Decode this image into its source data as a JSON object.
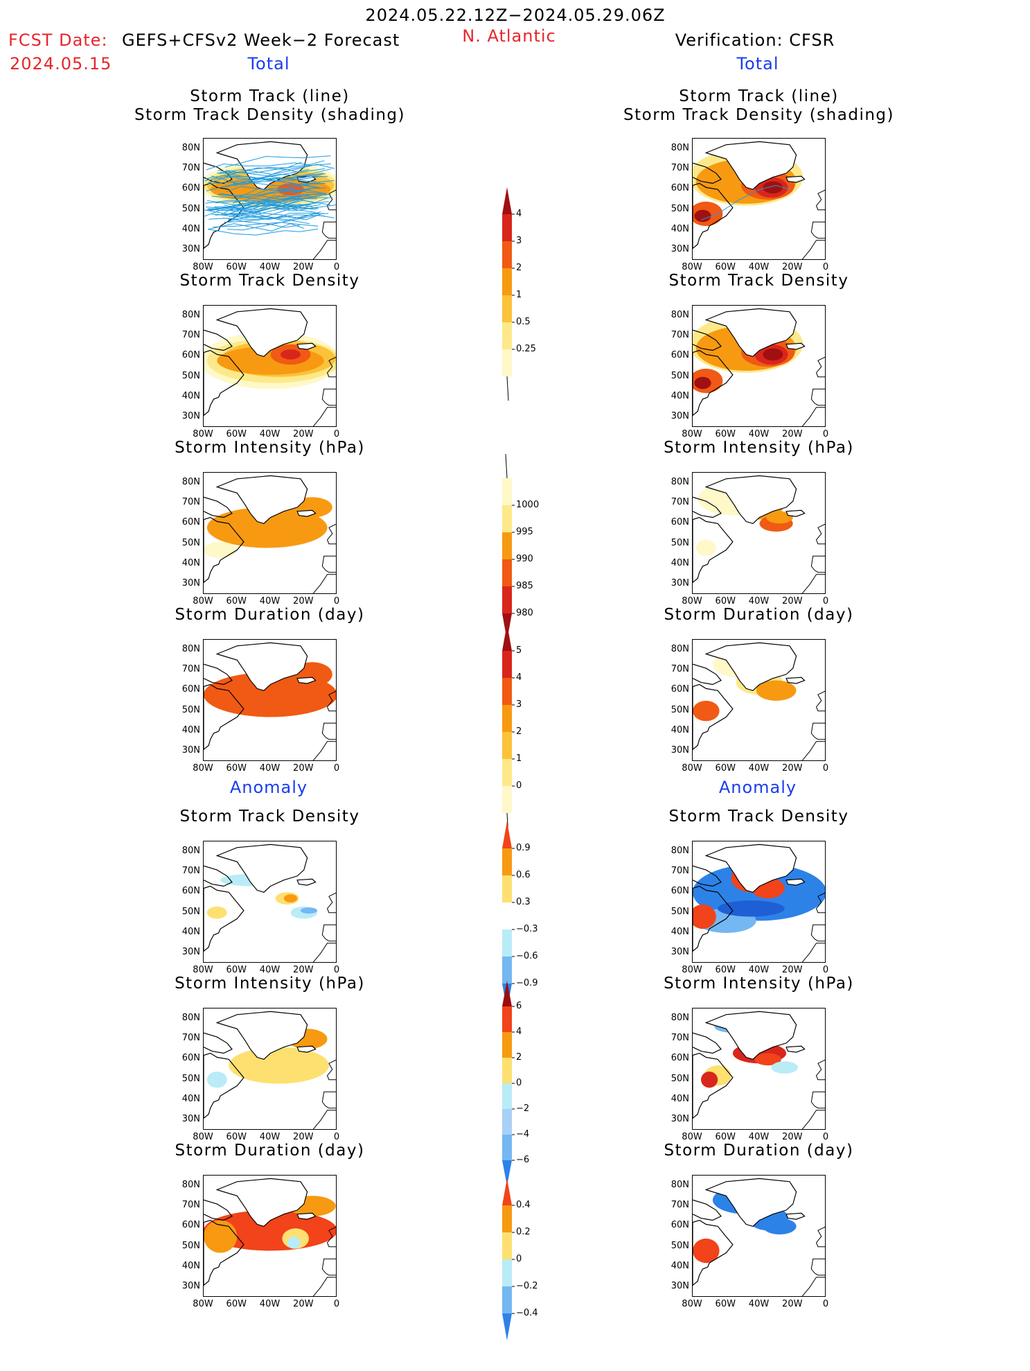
{
  "header": {
    "period": "2024.05.22.12Z−2024.05.29.06Z",
    "fcst_label": "FCST Date:",
    "fcst_model": "GEFS+CFSv2 Week−2 Forecast",
    "fcst_date": "2024.05.15",
    "region": "N. Atlantic",
    "verification": "Verification: CFSR",
    "left_total": "Total",
    "right_total": "Total",
    "left_anomaly": "Anomaly",
    "right_anomaly": "Anomaly"
  },
  "panel_titles": {
    "track_line": "Storm Track (line)",
    "track_density_shading": "Storm Track Density (shading)",
    "track_density": "Storm Track Density",
    "intensity": "Storm Intensity (hPa)",
    "duration": "Storm Duration (day)"
  },
  "axes": {
    "lat_ticks": [
      "80N",
      "70N",
      "60N",
      "50N",
      "40N",
      "30N"
    ],
    "lon_ticks": [
      "80W",
      "60W",
      "40W",
      "20W",
      "0"
    ]
  },
  "colorbars": {
    "density": {
      "labels": [
        "4",
        "3",
        "2",
        "1",
        "0.5",
        "0.25"
      ],
      "colors": [
        "#a01010",
        "#d9261c",
        "#f05a14",
        "#f79a12",
        "#fbc23a",
        "#fde98a",
        "#fff8c8"
      ]
    },
    "intensity": {
      "labels": [
        "1000",
        "995",
        "990",
        "985",
        "980"
      ],
      "colors": [
        "#fff8c8",
        "#fde98a",
        "#f79a12",
        "#f05a14",
        "#d9261c",
        "#a01010"
      ]
    },
    "duration": {
      "labels": [
        "5",
        "4",
        "3",
        "2",
        "1",
        "0"
      ],
      "colors": [
        "#a01010",
        "#d9261c",
        "#f05a14",
        "#f79a12",
        "#fbc23a",
        "#fde98a",
        "#fff8c8"
      ]
    },
    "anom_density": {
      "labels": [
        "0.9",
        "0.6",
        "0.3",
        "−0.3",
        "−0.6",
        "−0.9"
      ],
      "colors": [
        "#f2431a",
        "#f79a12",
        "#fde070",
        "#ffffff",
        "#b9ecf7",
        "#73b8f2",
        "#2d82e8"
      ]
    },
    "anom_intensity": {
      "labels": [
        "6",
        "4",
        "2",
        "0",
        "−2",
        "−4",
        "−6"
      ],
      "colors": [
        "#9c0d0d",
        "#f2431a",
        "#f79a12",
        "#fde070",
        "#b9ecf7",
        "#a8d0f7",
        "#73b8f2",
        "#2d82e8"
      ]
    },
    "anom_duration": {
      "labels": [
        "0.4",
        "0.2",
        "0",
        "−0.2",
        "−0.4"
      ],
      "colors": [
        "#f2431a",
        "#f79a12",
        "#fde070",
        "#b9ecf7",
        "#73b8f2",
        "#2d82e8"
      ]
    }
  },
  "colors": {
    "title_red": "#e8262b",
    "label_blue": "#1a3cf0",
    "track_line": "#1e9ae0"
  }
}
